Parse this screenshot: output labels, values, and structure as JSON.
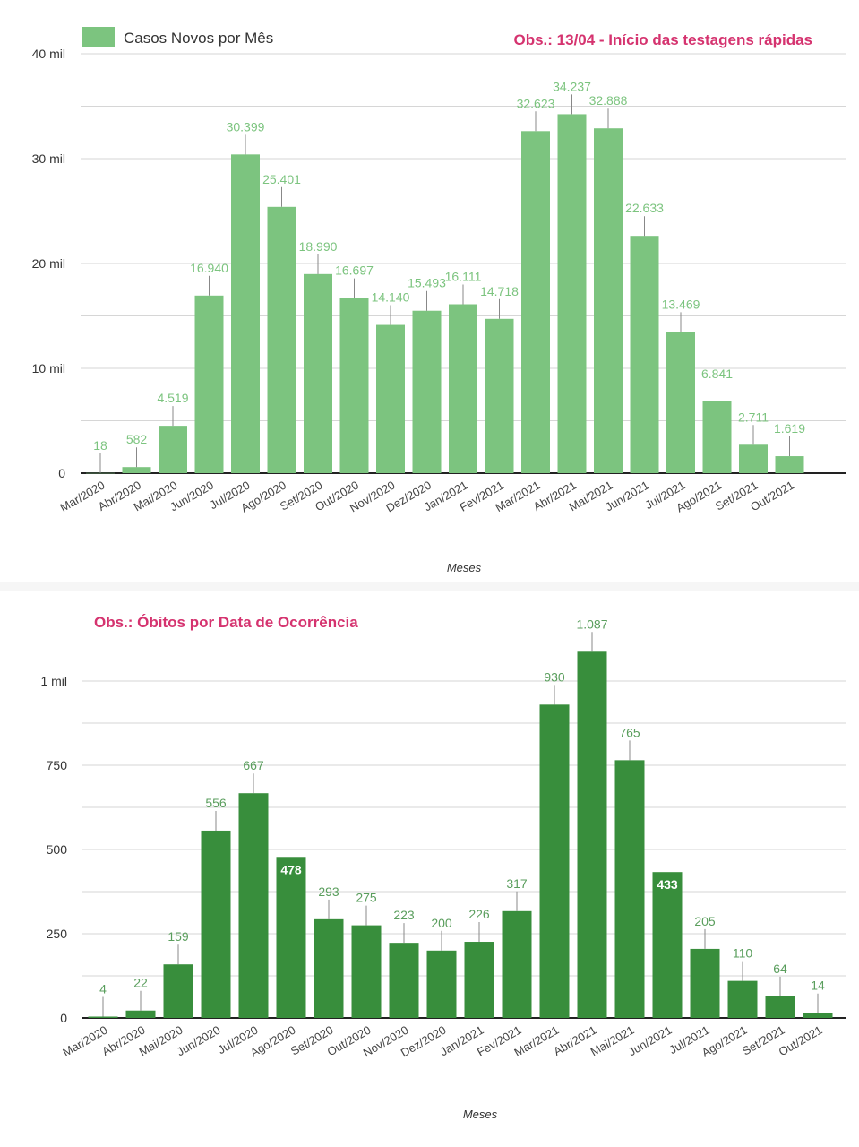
{
  "chart_data": [
    {
      "type": "bar",
      "title": "",
      "legend": {
        "entries": [
          "Casos Novos por Mês"
        ],
        "placement": "top-left"
      },
      "annotation": "Obs.: 13/04 - Início das testagens rápidas",
      "xlabel": "Meses",
      "ylabel": "",
      "ylim": [
        0,
        40000
      ],
      "yticks": [
        0,
        10000,
        20000,
        30000,
        40000
      ],
      "ytick_labels": [
        "0",
        "10 mil",
        "20 mil",
        "30 mil",
        "40 mil"
      ],
      "grid": true,
      "color": "#7cc47f",
      "categories": [
        "Mar/2020",
        "Abr/2020",
        "Mai/2020",
        "Jun/2020",
        "Jul/2020",
        "Ago/2020",
        "Set/2020",
        "Out/2020",
        "Nov/2020",
        "Dez/2020",
        "Jan/2021",
        "Fev/2021",
        "Mar/2021",
        "Abr/2021",
        "Mai/2021",
        "Jun/2021",
        "Jul/2021",
        "Ago/2021",
        "Set/2021",
        "Out/2021"
      ],
      "values": [
        18,
        582,
        4519,
        16940,
        30399,
        25401,
        18990,
        16697,
        14140,
        15493,
        16111,
        14718,
        32623,
        34237,
        32888,
        22633,
        13469,
        6841,
        2711,
        1619
      ],
      "data_labels": [
        "18",
        "582",
        "4.519",
        "16.940",
        "30.399",
        "25.401",
        "18.990",
        "16.697",
        "14.140",
        "15.493",
        "16.111",
        "14.718",
        "32.623",
        "34.237",
        "32.888",
        "22.633",
        "13.469",
        "6.841",
        "2.711",
        "1.619"
      ]
    },
    {
      "type": "bar",
      "title": "",
      "annotation": "Obs.: Óbitos por Data de Ocorrência",
      "xlabel": "Meses",
      "ylabel": "",
      "ylim": [
        0,
        1000
      ],
      "yticks": [
        0,
        250,
        500,
        750,
        1000
      ],
      "ytick_labels": [
        "0",
        "250",
        "500",
        "750",
        "1 mil"
      ],
      "grid": true,
      "color": "#388e3c",
      "categories": [
        "Mar/2020",
        "Abr/2020",
        "Mai/2020",
        "Jun/2020",
        "Jul/2020",
        "Ago/2020",
        "Set/2020",
        "Out/2020",
        "Nov/2020",
        "Dez/2020",
        "Jan/2021",
        "Fev/2021",
        "Mar/2021",
        "Abr/2021",
        "Mai/2021",
        "Jun/2021",
        "Jul/2021",
        "Ago/2021",
        "Set/2021",
        "Out/2021"
      ],
      "values": [
        4,
        22,
        159,
        556,
        667,
        478,
        293,
        275,
        223,
        200,
        226,
        317,
        930,
        1087,
        765,
        433,
        205,
        110,
        64,
        14
      ],
      "data_labels": [
        "4",
        "22",
        "159",
        "556",
        "667",
        "478",
        "293",
        "275",
        "223",
        "200",
        "226",
        "317",
        "930",
        "1.087",
        "765",
        "433",
        "205",
        "110",
        "64",
        "14"
      ],
      "inside_labels": [
        "Ago/2020",
        "Jun/2021"
      ]
    }
  ]
}
